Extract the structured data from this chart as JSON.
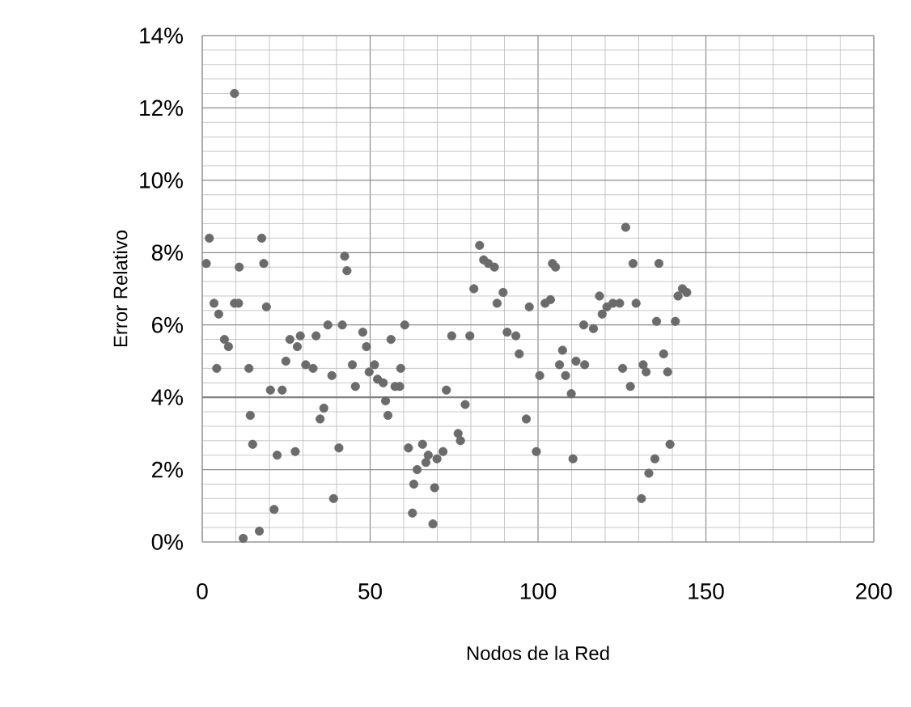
{
  "chart_data": {
    "type": "scatter",
    "xlabel": "Nodos de la Red",
    "ylabel": "Error Relativo",
    "xlim": [
      0,
      200
    ],
    "xticks": [
      0,
      50,
      100,
      150,
      200
    ],
    "ylim": [
      0,
      14
    ],
    "yticks": [
      {
        "value": 0,
        "label": "0%"
      },
      {
        "value": 2,
        "label": "2%"
      },
      {
        "value": 4,
        "label": "4%"
      },
      {
        "value": 6,
        "label": "6%"
      },
      {
        "value": 8,
        "label": "8%"
      },
      {
        "value": 10,
        "label": "10%"
      },
      {
        "value": 12,
        "label": "12%"
      },
      {
        "value": 14,
        "label": "14%"
      }
    ],
    "grid": true,
    "marker": "circle",
    "ref_lines": [
      {
        "axis": "y",
        "value": 4,
        "color": "#808080"
      }
    ],
    "series": [
      {
        "color": "#6b6b6b",
        "x": [
          1.2,
          2.1,
          3.5,
          4.9,
          4.3,
          6.6,
          7.8,
          9.6,
          9.6,
          11,
          10.8,
          12.2,
          13.9,
          14.3,
          15,
          17,
          17.7,
          18.3,
          19.1,
          20.3,
          21.4,
          22.3,
          23.8,
          24.9,
          26.1,
          27.7,
          28.3,
          29.2,
          30.8,
          33,
          33.9,
          35.1,
          36.2,
          37.4,
          38.6,
          39.1,
          40.7,
          41.7,
          42.4,
          43.1,
          44.7,
          45.6,
          47.8,
          48.9,
          49.7,
          51.3,
          52.2,
          53.9,
          54.6,
          55.3,
          56.2,
          57.4,
          58.8,
          59.1,
          60.3,
          61.4,
          62.6,
          63,
          64,
          65.6,
          66.6,
          67.3,
          68.7,
          69.2,
          69.9,
          71.7,
          72.7,
          74.3,
          76.2,
          76.9,
          78.3,
          79.7,
          80.9,
          82.6,
          83.8,
          85.2,
          87,
          87.8,
          89.6,
          90.8,
          93.4,
          94.4,
          96.5,
          97.4,
          99.5,
          100.5,
          102.1,
          103.7,
          104.3,
          105.2,
          106.4,
          107.3,
          108.2,
          109.9,
          110.4,
          111.3,
          113.9,
          113.6,
          116.5,
          118.3,
          119.1,
          120.5,
          122.3,
          124.3,
          125.2,
          126.1,
          127.5,
          128.3,
          129.2,
          130.8,
          131.3,
          132.2,
          133,
          134.8,
          135.3,
          136,
          137.4,
          138.6,
          139.3,
          140.9,
          141.7,
          143,
          144.3
        ],
        "values": [
          7.7,
          8.4,
          6.6,
          6.3,
          4.8,
          5.6,
          5.4,
          6.6,
          12.4,
          7.6,
          6.6,
          0.1,
          4.8,
          3.5,
          2.7,
          0.3,
          8.4,
          7.7,
          6.5,
          4.2,
          0.9,
          2.4,
          4.2,
          5.0,
          5.6,
          2.5,
          5.4,
          5.7,
          4.9,
          4.8,
          5.7,
          3.4,
          3.7,
          6.0,
          4.6,
          1.2,
          2.6,
          6.0,
          7.9,
          7.5,
          4.9,
          4.3,
          5.8,
          5.4,
          4.7,
          4.9,
          4.5,
          4.4,
          3.9,
          3.5,
          5.6,
          4.3,
          4.3,
          4.8,
          6.0,
          2.6,
          0.8,
          1.6,
          2.0,
          2.7,
          2.2,
          2.4,
          0.5,
          1.5,
          2.3,
          2.5,
          4.2,
          5.7,
          3.0,
          2.8,
          3.8,
          5.7,
          7.0,
          8.2,
          7.8,
          7.7,
          7.6,
          6.6,
          6.9,
          5.8,
          5.7,
          5.2,
          3.4,
          6.5,
          2.5,
          4.6,
          6.6,
          6.7,
          7.7,
          7.6,
          4.9,
          5.3,
          4.6,
          4.1,
          2.3,
          5.0,
          4.9,
          6.0,
          5.9,
          6.8,
          6.3,
          6.5,
          6.6,
          6.6,
          4.8,
          8.7,
          4.3,
          7.7,
          6.6,
          1.2,
          4.9,
          4.7,
          1.9,
          2.3,
          6.1,
          7.7,
          5.2,
          4.7,
          2.7,
          6.1,
          6.8,
          7.0,
          6.9
        ]
      }
    ]
  }
}
